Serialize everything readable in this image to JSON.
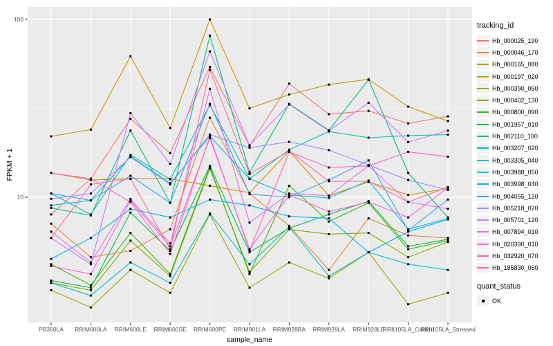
{
  "figure": {
    "y_axis_title": "FPKM + 1",
    "x_axis_title": "sample_name",
    "legend_title": "tracking_id",
    "quant_legend_title": "quant_status",
    "quant_legend_label": "OK"
  },
  "colors": {
    "panel_bg": "#EBEBEB",
    "grid": "#FFFFFF",
    "tick_mark": "#333333",
    "tick_text": "#4D4D4D",
    "axis_text": "#000000",
    "legend_key_bg": "#F2F2F2",
    "point": "#000000"
  },
  "chart_data": {
    "type": "line",
    "title": "",
    "xlabel": "sample_name",
    "ylabel": "FPKM + 1",
    "y_scale": "log10",
    "ylim": [
      1.94,
      117
    ],
    "yticks": [
      10,
      100
    ],
    "yticks_minor": [
      3.162,
      31.62
    ],
    "grid": "on",
    "legend_position": "right",
    "point_marker": "filled-black-square",
    "categories": [
      "PB350LA",
      "RRIM600LA",
      "RRIM600LE",
      "RRIM600SE",
      "RRIM600PE",
      "RRIM901LA",
      "RRIM928BA",
      "RRIM928LA",
      "RRIM928LE",
      "RRII105LA_Control",
      "RRII105LA_Stressed"
    ],
    "series": [
      {
        "name": "Hb_000025_190",
        "color": "#F8766D",
        "values": [
          8.0,
          12.7,
          27.6,
          17.7,
          54,
          19.4,
          43.5,
          29.3,
          30.6,
          26.0,
          28.5
        ]
      },
      {
        "name": "Hb_000046_170",
        "color": "#EA8331",
        "values": [
          7.1,
          4.6,
          5.0,
          6.6,
          28,
          10.5,
          6.9,
          3.9,
          7.6,
          6.1,
          5.9
        ]
      },
      {
        "name": "Hb_000165_080",
        "color": "#D89000",
        "values": [
          13.7,
          12.5,
          12.7,
          12.7,
          11.6,
          10.6,
          18.2,
          10.2,
          12.2,
          10.3,
          11.2
        ]
      },
      {
        "name": "Hb_000197_020",
        "color": "#C09B00",
        "values": [
          22,
          24,
          62,
          24.5,
          100,
          31.6,
          37.8,
          43,
          46,
          32.3,
          26.8
        ]
      },
      {
        "name": "Hb_000390_050",
        "color": "#A3A500",
        "values": [
          3.0,
          2.4,
          3.9,
          2.9,
          8.0,
          3.1,
          4.3,
          3.5,
          4.9,
          2.5,
          2.9
        ]
      },
      {
        "name": "Hb_000402_130",
        "color": "#7CAE00",
        "values": [
          3.3,
          3.0,
          5.7,
          3.6,
          14.5,
          3.8,
          6.6,
          6.2,
          6.3,
          4.6,
          5.6
        ]
      },
      {
        "name": "Hb_000800_090",
        "color": "#39B600",
        "values": [
          4.2,
          3.2,
          6.3,
          3.7,
          14.8,
          3.7,
          11.6,
          7.3,
          9.3,
          5.1,
          5.7
        ]
      },
      {
        "name": "Hb_001957_010",
        "color": "#00BB4E",
        "values": [
          3.4,
          3.1,
          8.2,
          5.0,
          15.0,
          4.9,
          6.7,
          8.0,
          9.5,
          5.3,
          5.8
        ]
      },
      {
        "name": "Hb_002110_100",
        "color": "#00BF7D",
        "values": [
          8.7,
          7.9,
          23.7,
          9.3,
          81,
          13.8,
          33.5,
          23.8,
          45.8,
          13.7,
          7.7
        ]
      },
      {
        "name": "Hb_003207_020",
        "color": "#00C1A3",
        "values": [
          10.5,
          8.0,
          17.3,
          12.6,
          33,
          12.7,
          18.5,
          23.4,
          21.6,
          22.2,
          22.5
        ]
      },
      {
        "name": "Hb_003305_040",
        "color": "#00BFC4",
        "values": [
          3.3,
          2.8,
          4.3,
          3.3,
          8.1,
          4.2,
          6.8,
          3.6,
          4.9,
          4.2,
          3.9
        ]
      },
      {
        "name": "Hb_003988_050",
        "color": "#00BAE0",
        "values": [
          9.0,
          9.6,
          17.0,
          12.0,
          22.0,
          12.7,
          10.3,
          9.9,
          12.4,
          6.6,
          7.6
        ]
      },
      {
        "name": "Hb_003998_040",
        "color": "#00B0F6",
        "values": [
          4.5,
          5.9,
          8.6,
          7.7,
          9.7,
          9.0,
          7.8,
          7.6,
          4.9,
          6.4,
          7.5
        ]
      },
      {
        "name": "Hb_004055_120",
        "color": "#35A2FF",
        "values": [
          10.5,
          9.6,
          13.2,
          9.3,
          33.5,
          10.4,
          10.0,
          12.5,
          16.1,
          6.5,
          9.7
        ]
      },
      {
        "name": "Hb_005218_020",
        "color": "#9590FF",
        "values": [
          9.8,
          10.5,
          16.8,
          11.8,
          22.5,
          19.0,
          20.5,
          18.4,
          15.2,
          12.5,
          11.0
        ]
      },
      {
        "name": "Hb_005701_120",
        "color": "#C77CFF",
        "values": [
          5.9,
          4.2,
          29.7,
          15.4,
          66,
          19.6,
          33.2,
          23.6,
          34,
          20.4,
          23.7
        ]
      },
      {
        "name": "Hb_007894_010",
        "color": "#E76BF3",
        "values": [
          6.4,
          4.3,
          9.8,
          5.5,
          40.7,
          7.2,
          10.5,
          10.2,
          15.0,
          9.4,
          8.6
        ]
      },
      {
        "name": "Hb_020390_010",
        "color": "#FA62DB",
        "values": [
          4.1,
          3.7,
          9.6,
          5.3,
          21.5,
          5.1,
          10.3,
          8.3,
          9.4,
          7.7,
          11.3
        ]
      },
      {
        "name": "Hb_032920_070",
        "color": "#FF62BC",
        "values": [
          13.7,
          12.7,
          9.4,
          4.8,
          22,
          5.0,
          18.0,
          14.7,
          15.0,
          18.0,
          16.9
        ]
      },
      {
        "name": "Hb_185830_060",
        "color": "#FF6A98",
        "values": [
          5.9,
          11.8,
          12.7,
          5.1,
          52,
          13.5,
          18.2,
          12.3,
          12.3,
          9.4,
          11.4
        ]
      }
    ]
  }
}
